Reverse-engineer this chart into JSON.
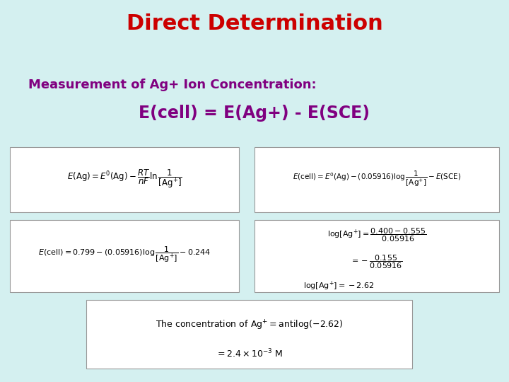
{
  "title": "Direct Determination",
  "title_color": "#cc0000",
  "title_fontsize": 22,
  "subtitle1": "Measurement of Ag+ Ion Concentration:",
  "subtitle1_color": "#800080",
  "subtitle1_fontsize": 13,
  "subtitle2": "E(cell) = E(Ag+) - E(SCE)",
  "subtitle2_color": "#800080",
  "subtitle2_fontsize": 17,
  "bg_color": "#d4f0f0",
  "box_color": "#ffffff",
  "box_edge_color": "#999999",
  "formula1": "$E(\\mathrm{Ag}) = E^{0}(\\mathrm{Ag}) - \\dfrac{RT}{nF}\\ln\\dfrac{1}{[\\mathrm{Ag}^{+}]}$",
  "formula2": "$E(\\mathrm{cell}) = E^{0}(\\mathrm{Ag}) - (0.05916)\\log\\dfrac{1}{[\\mathrm{Ag}^{+}]} - E(\\mathrm{SCE})$",
  "formula3": "$E(\\mathrm{cell}) = 0.799 - (0.05916)\\log\\dfrac{1}{[\\mathrm{Ag}^{+}]} - 0.244$",
  "formula4a": "$\\log[\\mathrm{Ag}^{+}] = \\dfrac{0.400 - 0.555}{0.05916}$",
  "formula4b": "$= -\\dfrac{0.155}{0.05916}$",
  "formula4c": "$\\log[\\mathrm{Ag}^{+}] = -2.62$",
  "formula5a": "$\\mathrm{The\\ concentration\\ of\\ Ag}^{+} = \\mathrm{antilog}(-2.62)$",
  "formula5b": "$= 2.4 \\times 10^{-3}\\ \\mathrm{M}$"
}
